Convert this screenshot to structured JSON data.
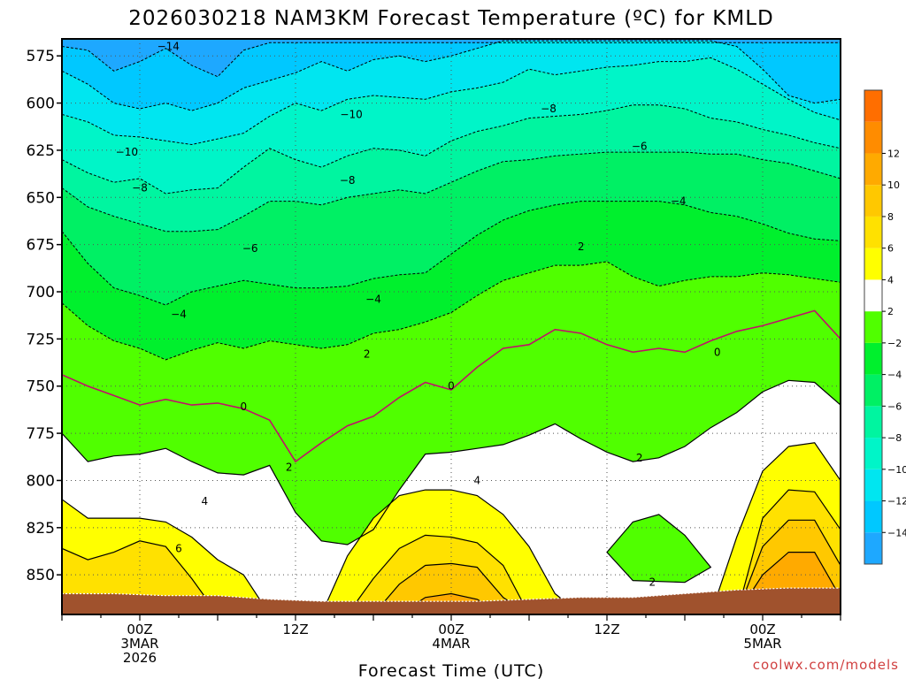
{
  "chart_data": {
    "type": "heatmap",
    "subtype": "time-height filled contour",
    "title": "2026030218 NAM3KM Forecast Temperature (ºC) for KMLD",
    "xlabel": "Forecast Time (UTC)",
    "ylabel": "",
    "credit": "coolwx.com/models",
    "x_ticks": [
      {
        "hours": 6,
        "lines": [
          "00Z",
          "3MAR",
          "2026"
        ]
      },
      {
        "hours": 18,
        "lines": [
          "12Z"
        ]
      },
      {
        "hours": 30,
        "lines": [
          "00Z",
          "4MAR"
        ]
      },
      {
        "hours": 42,
        "lines": [
          "12Z"
        ]
      },
      {
        "hours": 54,
        "lines": [
          "00Z",
          "5MAR"
        ]
      }
    ],
    "xlim_hours": [
      0,
      60
    ],
    "y_ticks_hpa": [
      575,
      600,
      625,
      650,
      675,
      700,
      725,
      750,
      775,
      800,
      825,
      850
    ],
    "ylim_hpa": [
      566,
      871
    ],
    "colorbar": {
      "levels": [
        -14,
        -12,
        -10,
        -8,
        -6,
        -4,
        -2,
        2,
        4,
        6,
        8,
        10,
        12
      ],
      "bin_colors": [
        "#1ea8ff",
        "#00c8ff",
        "#00e6f0",
        "#00f5c8",
        "#00f5a0",
        "#00f064",
        "#00f02d",
        "#50ff00",
        "#ffffff",
        "#ffff00",
        "#ffe100",
        "#ffc800",
        "#ffaa00",
        "#ff8c00",
        "#ff6e00"
      ]
    },
    "isotherm_profiles_hpa": [
      {
        "temp": -14,
        "x_hours": [
          0,
          2,
          4,
          6,
          8,
          10,
          12,
          14,
          16,
          18,
          20,
          22,
          24,
          26,
          28,
          30,
          32,
          34,
          36,
          38,
          40,
          42,
          44,
          46,
          48,
          50,
          52,
          54,
          56,
          58,
          60
        ],
        "hpa": [
          570,
          572,
          583,
          578,
          571,
          580,
          586,
          572,
          568,
          568,
          568,
          568,
          568,
          568,
          568,
          568,
          568,
          568,
          568,
          568,
          568,
          568,
          568,
          568,
          568,
          568,
          568,
          568,
          568,
          568,
          568
        ]
      },
      {
        "temp": -12,
        "x_hours": [
          0,
          2,
          4,
          6,
          8,
          10,
          12,
          14,
          16,
          18,
          20,
          22,
          24,
          26,
          28,
          30,
          32,
          34,
          36,
          38,
          40,
          42,
          44,
          46,
          48,
          50,
          52,
          54,
          56,
          58,
          60
        ],
        "hpa": [
          583,
          590,
          600,
          603,
          600,
          604,
          600,
          592,
          588,
          584,
          578,
          583,
          577,
          575,
          578,
          575,
          571,
          567,
          567,
          567,
          567,
          567,
          567,
          567,
          567,
          567,
          570,
          582,
          596,
          600,
          598
        ]
      },
      {
        "temp": -10,
        "x_hours": [
          0,
          2,
          4,
          6,
          8,
          10,
          12,
          14,
          16,
          18,
          20,
          22,
          24,
          26,
          28,
          30,
          32,
          34,
          36,
          38,
          40,
          42,
          44,
          46,
          48,
          50,
          52,
          54,
          56,
          58,
          60
        ],
        "hpa": [
          606,
          610,
          617,
          618,
          620,
          622,
          619,
          616,
          607,
          600,
          604,
          598,
          596,
          597,
          598,
          594,
          592,
          589,
          582,
          585,
          583,
          581,
          580,
          578,
          578,
          576,
          582,
          590,
          598,
          605,
          609
        ]
      },
      {
        "temp": -8,
        "x_hours": [
          0,
          2,
          4,
          6,
          8,
          10,
          12,
          14,
          16,
          18,
          20,
          22,
          24,
          26,
          28,
          30,
          32,
          34,
          36,
          38,
          40,
          42,
          44,
          46,
          48,
          50,
          52,
          54,
          56,
          58,
          60
        ],
        "hpa": [
          630,
          637,
          642,
          640,
          648,
          646,
          645,
          634,
          624,
          630,
          634,
          628,
          624,
          625,
          628,
          620,
          615,
          612,
          608,
          607,
          606,
          604,
          601,
          601,
          603,
          608,
          610,
          614,
          617,
          621,
          624
        ]
      },
      {
        "temp": -6,
        "x_hours": [
          0,
          2,
          4,
          6,
          8,
          10,
          12,
          14,
          16,
          18,
          20,
          22,
          24,
          26,
          28,
          30,
          32,
          34,
          36,
          38,
          40,
          42,
          44,
          46,
          48,
          50,
          52,
          54,
          56,
          58,
          60
        ],
        "hpa": [
          645,
          655,
          660,
          664,
          668,
          668,
          667,
          660,
          652,
          652,
          654,
          650,
          648,
          646,
          648,
          642,
          636,
          631,
          630,
          628,
          627,
          626,
          626,
          626,
          626,
          627,
          627,
          630,
          632,
          636,
          640
        ]
      },
      {
        "temp": -4,
        "x_hours": [
          0,
          2,
          4,
          6,
          8,
          10,
          12,
          14,
          16,
          18,
          20,
          22,
          24,
          26,
          28,
          30,
          32,
          34,
          36,
          38,
          40,
          42,
          44,
          46,
          48,
          50,
          52,
          54,
          56,
          58,
          60
        ],
        "hpa": [
          668,
          685,
          698,
          702,
          707,
          700,
          697,
          694,
          696,
          698,
          698,
          697,
          693,
          691,
          690,
          680,
          670,
          662,
          657,
          654,
          652,
          652,
          652,
          652,
          654,
          658,
          660,
          664,
          669,
          672,
          673
        ]
      },
      {
        "temp": -2,
        "x_hours": [
          0,
          2,
          4,
          6,
          8,
          10,
          12,
          14,
          16,
          18,
          20,
          22,
          24,
          26,
          28,
          30,
          32,
          34,
          36,
          38,
          40,
          42,
          44,
          46,
          48,
          50,
          52,
          54,
          56,
          58,
          60
        ],
        "hpa": [
          706,
          718,
          726,
          730,
          736,
          731,
          727,
          730,
          726,
          728,
          730,
          728,
          722,
          720,
          716,
          711,
          702,
          694,
          690,
          686,
          686,
          684,
          692,
          697,
          694,
          692,
          692,
          690,
          691,
          693,
          695
        ]
      },
      {
        "temp": 0,
        "x_hours": [
          0,
          2,
          4,
          6,
          8,
          10,
          12,
          14,
          16,
          18,
          20,
          22,
          24,
          26,
          28,
          30,
          32,
          34,
          36,
          38,
          40,
          42,
          44,
          46,
          48,
          50,
          52,
          54,
          56,
          58,
          60
        ],
        "hpa": [
          744,
          750,
          755,
          760,
          757,
          760,
          759,
          762,
          768,
          790,
          780,
          771,
          766,
          756,
          748,
          752,
          740,
          730,
          728,
          720,
          722,
          728,
          732,
          730,
          732,
          726,
          721,
          718,
          714,
          710,
          725
        ]
      },
      {
        "temp": 2,
        "x_hours": [
          0,
          2,
          4,
          6,
          8,
          10,
          12,
          14,
          16,
          18,
          20,
          22,
          24,
          26,
          28,
          30,
          32,
          34,
          36,
          38,
          40,
          42,
          44,
          46,
          48,
          50,
          52,
          54,
          56,
          58,
          60
        ],
        "hpa": [
          775,
          790,
          787,
          786,
          783,
          790,
          796,
          797,
          792,
          817,
          832,
          834,
          826,
          805,
          786,
          785,
          783,
          781,
          776,
          770,
          778,
          785,
          790,
          788,
          782,
          772,
          764,
          753,
          747,
          748,
          760
        ]
      },
      {
        "temp": 4,
        "x_hours": [
          0,
          2,
          4,
          6,
          8,
          10,
          12,
          14,
          16,
          18,
          20,
          22,
          24,
          26,
          28,
          30,
          32,
          34,
          36,
          38,
          40,
          42,
          44,
          46,
          48,
          50,
          52,
          54,
          56,
          58,
          60
        ],
        "hpa": [
          810,
          820,
          820,
          820,
          822,
          830,
          842,
          850,
          871,
          871,
          871,
          840,
          820,
          808,
          805,
          805,
          808,
          818,
          835,
          860,
          871,
          871,
          871,
          871,
          871,
          871,
          830,
          795,
          782,
          780,
          800
        ]
      },
      {
        "temp": 6,
        "x_hours": [
          0,
          2,
          4,
          6,
          8,
          10,
          12,
          14,
          16,
          18,
          20,
          22,
          24,
          26,
          28,
          30,
          32,
          34,
          36,
          38,
          40,
          42,
          44,
          46,
          48,
          50,
          52,
          54,
          56,
          58,
          60
        ],
        "hpa": [
          836,
          842,
          838,
          832,
          835,
          852,
          871,
          871,
          871,
          871,
          871,
          871,
          852,
          836,
          829,
          830,
          833,
          845,
          871,
          871,
          871,
          871,
          871,
          871,
          871,
          871,
          871,
          820,
          805,
          806,
          826
        ]
      },
      {
        "temp": 8,
        "x_hours": [
          0,
          2,
          4,
          6,
          8,
          10,
          12,
          14,
          16,
          18,
          20,
          22,
          24,
          26,
          28,
          30,
          32,
          34,
          36,
          38,
          40,
          42,
          44,
          46,
          48,
          50,
          52,
          54,
          56,
          58,
          60
        ],
        "hpa": [
          871,
          871,
          871,
          871,
          871,
          871,
          871,
          871,
          871,
          871,
          871,
          871,
          871,
          855,
          845,
          844,
          846,
          862,
          871,
          871,
          871,
          871,
          871,
          871,
          871,
          871,
          871,
          835,
          821,
          821,
          845
        ]
      },
      {
        "temp": 10,
        "x_hours": [
          0,
          2,
          4,
          6,
          8,
          10,
          12,
          14,
          16,
          18,
          20,
          22,
          24,
          26,
          28,
          30,
          32,
          34,
          36,
          38,
          40,
          42,
          44,
          46,
          48,
          50,
          52,
          54,
          56,
          58,
          60
        ],
        "hpa": [
          871,
          871,
          871,
          871,
          871,
          871,
          871,
          871,
          871,
          871,
          871,
          871,
          871,
          871,
          862,
          860,
          863,
          871,
          871,
          871,
          871,
          871,
          871,
          871,
          871,
          871,
          871,
          850,
          838,
          838,
          862
        ]
      }
    ],
    "warm_pocket": {
      "temp": 2,
      "x_hours": [
        42,
        44,
        46,
        48,
        50,
        48,
        44,
        42
      ],
      "hpa": [
        838,
        822,
        818,
        829,
        846,
        854,
        853,
        838
      ]
    },
    "terrain_hpa": {
      "x_hours": [
        0,
        4,
        8,
        12,
        16,
        20,
        24,
        28,
        32,
        36,
        40,
        44,
        48,
        52,
        56,
        60
      ],
      "hpa": [
        860,
        860,
        861,
        861,
        863,
        864,
        864,
        864,
        864,
        863,
        862,
        862,
        860,
        858,
        857,
        857
      ]
    },
    "terrain_color": "#a0522d",
    "isotherm_labels": [
      {
        "text": "-14",
        "x_hours": 8.2,
        "hpa": 570
      },
      {
        "text": "-10",
        "x_hours": 22.3,
        "hpa": 606
      },
      {
        "text": "-10",
        "x_hours": 5.0,
        "hpa": 626
      },
      {
        "text": "-8",
        "x_hours": 37.5,
        "hpa": 603
      },
      {
        "text": "-8",
        "x_hours": 22.0,
        "hpa": 641
      },
      {
        "text": "-8",
        "x_hours": 6.0,
        "hpa": 645
      },
      {
        "text": "-6",
        "x_hours": 44.5,
        "hpa": 623
      },
      {
        "text": "-6",
        "x_hours": 14.5,
        "hpa": 677
      },
      {
        "text": "-4",
        "x_hours": 47.5,
        "hpa": 652
      },
      {
        "text": "-4",
        "x_hours": 24.0,
        "hpa": 704
      },
      {
        "text": "-4",
        "x_hours": 9.0,
        "hpa": 712
      },
      {
        "text": "2",
        "x_hours": 40.0,
        "hpa": 676
      },
      {
        "text": "2",
        "x_hours": 23.5,
        "hpa": 733
      },
      {
        "text": "2",
        "x_hours": 17.5,
        "hpa": 793
      },
      {
        "text": "2",
        "x_hours": 44.5,
        "hpa": 788
      },
      {
        "text": "2",
        "x_hours": 45.5,
        "hpa": 854
      },
      {
        "text": "0",
        "x_hours": 14.0,
        "hpa": 761
      },
      {
        "text": "0",
        "x_hours": 30.0,
        "hpa": 750
      },
      {
        "text": "0",
        "x_hours": 50.5,
        "hpa": 732
      },
      {
        "text": "4",
        "x_hours": 32.0,
        "hpa": 800
      },
      {
        "text": "4",
        "x_hours": 11.0,
        "hpa": 811
      },
      {
        "text": "6",
        "x_hours": 9.0,
        "hpa": 836
      }
    ]
  }
}
